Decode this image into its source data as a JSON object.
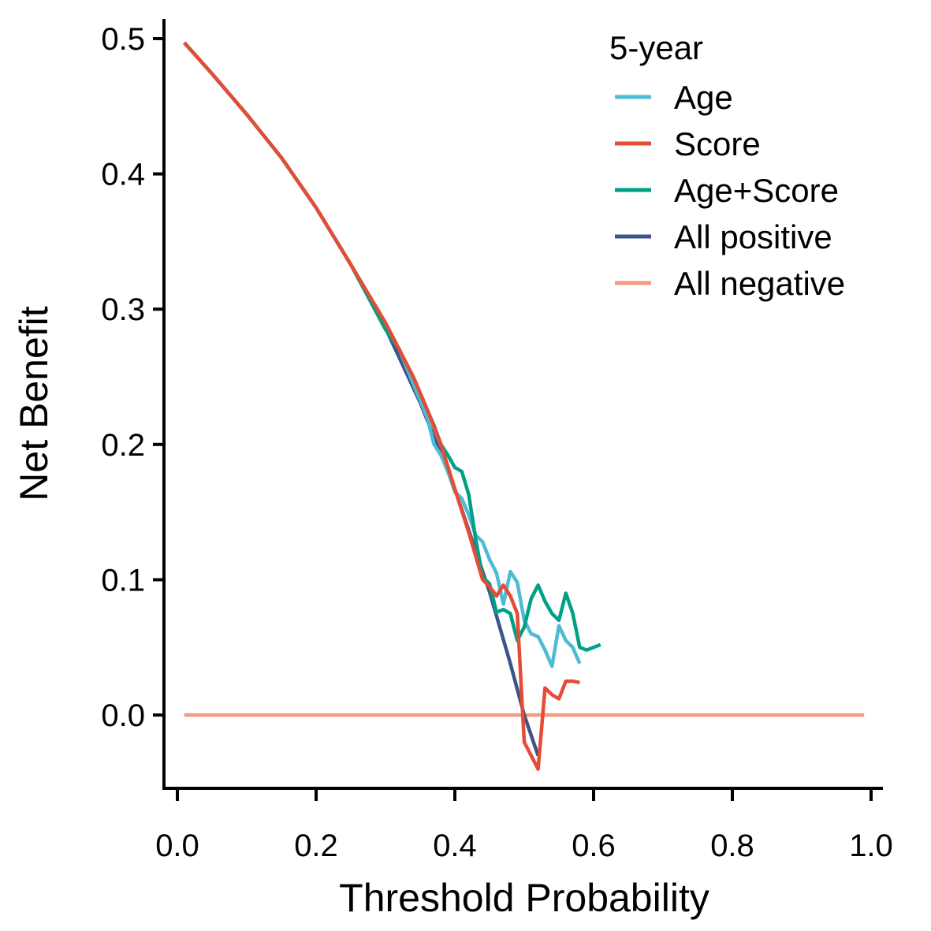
{
  "chart_data": {
    "type": "line",
    "xlabel": "Threshold Probability",
    "ylabel": "Net Benefit",
    "xlim": [
      0.0,
      1.0
    ],
    "ylim": [
      -0.055,
      0.515
    ],
    "x_ticks": [
      "0.0",
      "0.2",
      "0.4",
      "0.6",
      "0.8",
      "1.0"
    ],
    "y_ticks": [
      "0.0",
      "0.1",
      "0.2",
      "0.3",
      "0.4",
      "0.5"
    ],
    "grid": false,
    "legend": {
      "title": "5-year",
      "placement": "top-right",
      "entries": [
        "Age",
        "Score",
        "Age+Score",
        "All positive",
        "All negative"
      ]
    },
    "series": [
      {
        "name": "All negative",
        "color": "#F39B7F",
        "x": [
          0.01,
          0.99
        ],
        "y": [
          0.0,
          0.0
        ]
      },
      {
        "name": "All positive",
        "color": "#3C5488",
        "x": [
          0.01,
          0.05,
          0.1,
          0.15,
          0.2,
          0.25,
          0.3,
          0.35,
          0.4,
          0.45,
          0.48,
          0.5,
          0.52
        ],
        "y": [
          0.497,
          0.474,
          0.444,
          0.412,
          0.375,
          0.333,
          0.286,
          0.231,
          0.167,
          0.091,
          0.038,
          0.0,
          -0.03
        ]
      },
      {
        "name": "Age",
        "color": "#4DBBD5",
        "x": [
          0.01,
          0.05,
          0.1,
          0.15,
          0.2,
          0.25,
          0.3,
          0.32,
          0.34,
          0.36,
          0.37,
          0.38,
          0.39,
          0.4,
          0.41,
          0.42,
          0.43,
          0.44,
          0.45,
          0.46,
          0.47,
          0.48,
          0.49,
          0.5,
          0.51,
          0.52,
          0.53,
          0.54,
          0.55,
          0.56,
          0.57,
          0.58
        ],
        "y": [
          0.497,
          0.474,
          0.444,
          0.412,
          0.375,
          0.333,
          0.288,
          0.27,
          0.245,
          0.22,
          0.2,
          0.192,
          0.18,
          0.165,
          0.16,
          0.148,
          0.133,
          0.128,
          0.115,
          0.105,
          0.082,
          0.106,
          0.098,
          0.07,
          0.06,
          0.058,
          0.048,
          0.036,
          0.066,
          0.055,
          0.05,
          0.038
        ]
      },
      {
        "name": "Age+Score",
        "color": "#00A087",
        "x": [
          0.01,
          0.05,
          0.1,
          0.15,
          0.2,
          0.25,
          0.3,
          0.32,
          0.34,
          0.36,
          0.37,
          0.38,
          0.39,
          0.4,
          0.41,
          0.42,
          0.43,
          0.44,
          0.45,
          0.46,
          0.47,
          0.48,
          0.49,
          0.5,
          0.51,
          0.52,
          0.53,
          0.54,
          0.55,
          0.56,
          0.57,
          0.58,
          0.59,
          0.6,
          0.61
        ],
        "y": [
          0.497,
          0.474,
          0.444,
          0.412,
          0.375,
          0.333,
          0.285,
          0.27,
          0.25,
          0.226,
          0.214,
          0.2,
          0.192,
          0.183,
          0.18,
          0.163,
          0.13,
          0.102,
          0.097,
          0.076,
          0.078,
          0.075,
          0.055,
          0.065,
          0.086,
          0.096,
          0.084,
          0.075,
          0.07,
          0.09,
          0.075,
          0.05,
          0.048,
          0.05,
          0.052
        ]
      },
      {
        "name": "Score",
        "color": "#E64B35",
        "x": [
          0.01,
          0.05,
          0.1,
          0.15,
          0.2,
          0.25,
          0.3,
          0.32,
          0.34,
          0.36,
          0.38,
          0.4,
          0.42,
          0.44,
          0.45,
          0.46,
          0.47,
          0.48,
          0.49,
          0.5,
          0.51,
          0.52,
          0.53,
          0.54,
          0.55,
          0.56,
          0.57,
          0.58
        ],
        "y": [
          0.497,
          0.474,
          0.444,
          0.412,
          0.375,
          0.333,
          0.29,
          0.27,
          0.25,
          0.226,
          0.2,
          0.167,
          0.135,
          0.1,
          0.095,
          0.088,
          0.096,
          0.088,
          0.075,
          -0.02,
          -0.03,
          -0.04,
          0.02,
          0.015,
          0.012,
          0.025,
          0.025,
          0.024
        ]
      }
    ]
  }
}
